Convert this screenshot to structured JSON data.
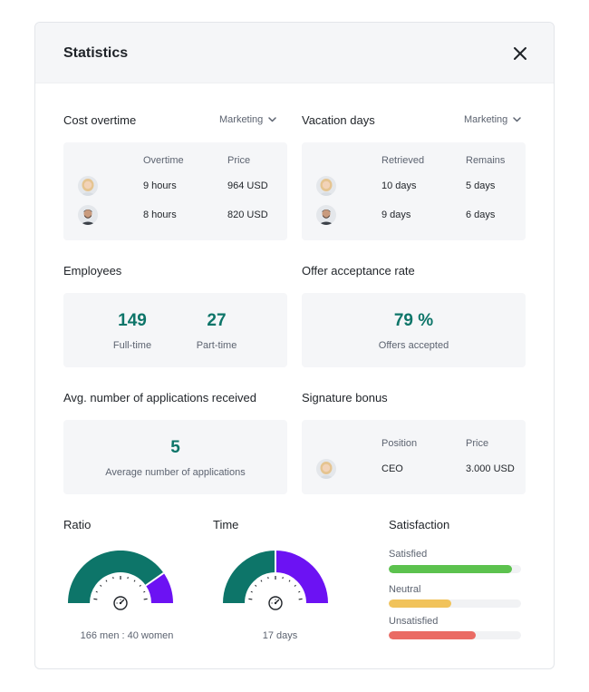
{
  "header": {
    "title": "Statistics",
    "close_icon": "close-icon"
  },
  "cost_overtime": {
    "title": "Cost overtime",
    "department": "Marketing",
    "columns": [
      "Overtime",
      "Price"
    ],
    "rows": [
      {
        "avatar": "female-avatar",
        "overtime": "9 hours",
        "price": "964 USD"
      },
      {
        "avatar": "male-avatar",
        "overtime": "8 hours",
        "price": "820 USD"
      }
    ]
  },
  "vacation_days": {
    "title": "Vacation days",
    "department": "Marketing",
    "columns": [
      "Retrieved",
      "Remains"
    ],
    "rows": [
      {
        "avatar": "female-avatar",
        "retrieved": "10 days",
        "remains": "5 days"
      },
      {
        "avatar": "male-avatar",
        "retrieved": "9 days",
        "remains": "6 days"
      }
    ]
  },
  "employees": {
    "title": "Employees",
    "full_time_value": "149",
    "full_time_label": "Full-time",
    "part_time_value": "27",
    "part_time_label": "Part-time"
  },
  "offer_acceptance": {
    "title": "Offer acceptance rate",
    "value": "79 %",
    "label": "Offers accepted"
  },
  "applications": {
    "title": "Avg. number of applications received",
    "value": "5",
    "label": "Average number of applications"
  },
  "signature_bonus": {
    "title": "Signature bonus",
    "columns": [
      "Position",
      "Price"
    ],
    "row": {
      "avatar": "female-avatar",
      "position": "CEO",
      "price": "3.000 USD"
    }
  },
  "ratio": {
    "title": "Ratio",
    "caption": "166 men : 40 women",
    "men": 166,
    "women": 40,
    "fraction": 0.806,
    "icon": "speedometer-icon"
  },
  "time": {
    "title": "Time",
    "caption": "17 days",
    "fraction": 0.5,
    "icon": "speedometer-icon"
  },
  "satisfaction": {
    "title": "Satisfaction",
    "bars": [
      {
        "label": "Satisfied",
        "value": 0.93,
        "color": "#5cc24e"
      },
      {
        "label": "Neutral",
        "value": 0.47,
        "color": "#f1c35b"
      },
      {
        "label": "Unsatisfied",
        "value": 0.66,
        "color": "#ea6b64"
      }
    ]
  },
  "colors": {
    "accent": "#0d7569",
    "gauge_primary": "#0d7569",
    "gauge_secondary": "#6c12f3",
    "card_bg": "#f5f6f8"
  }
}
